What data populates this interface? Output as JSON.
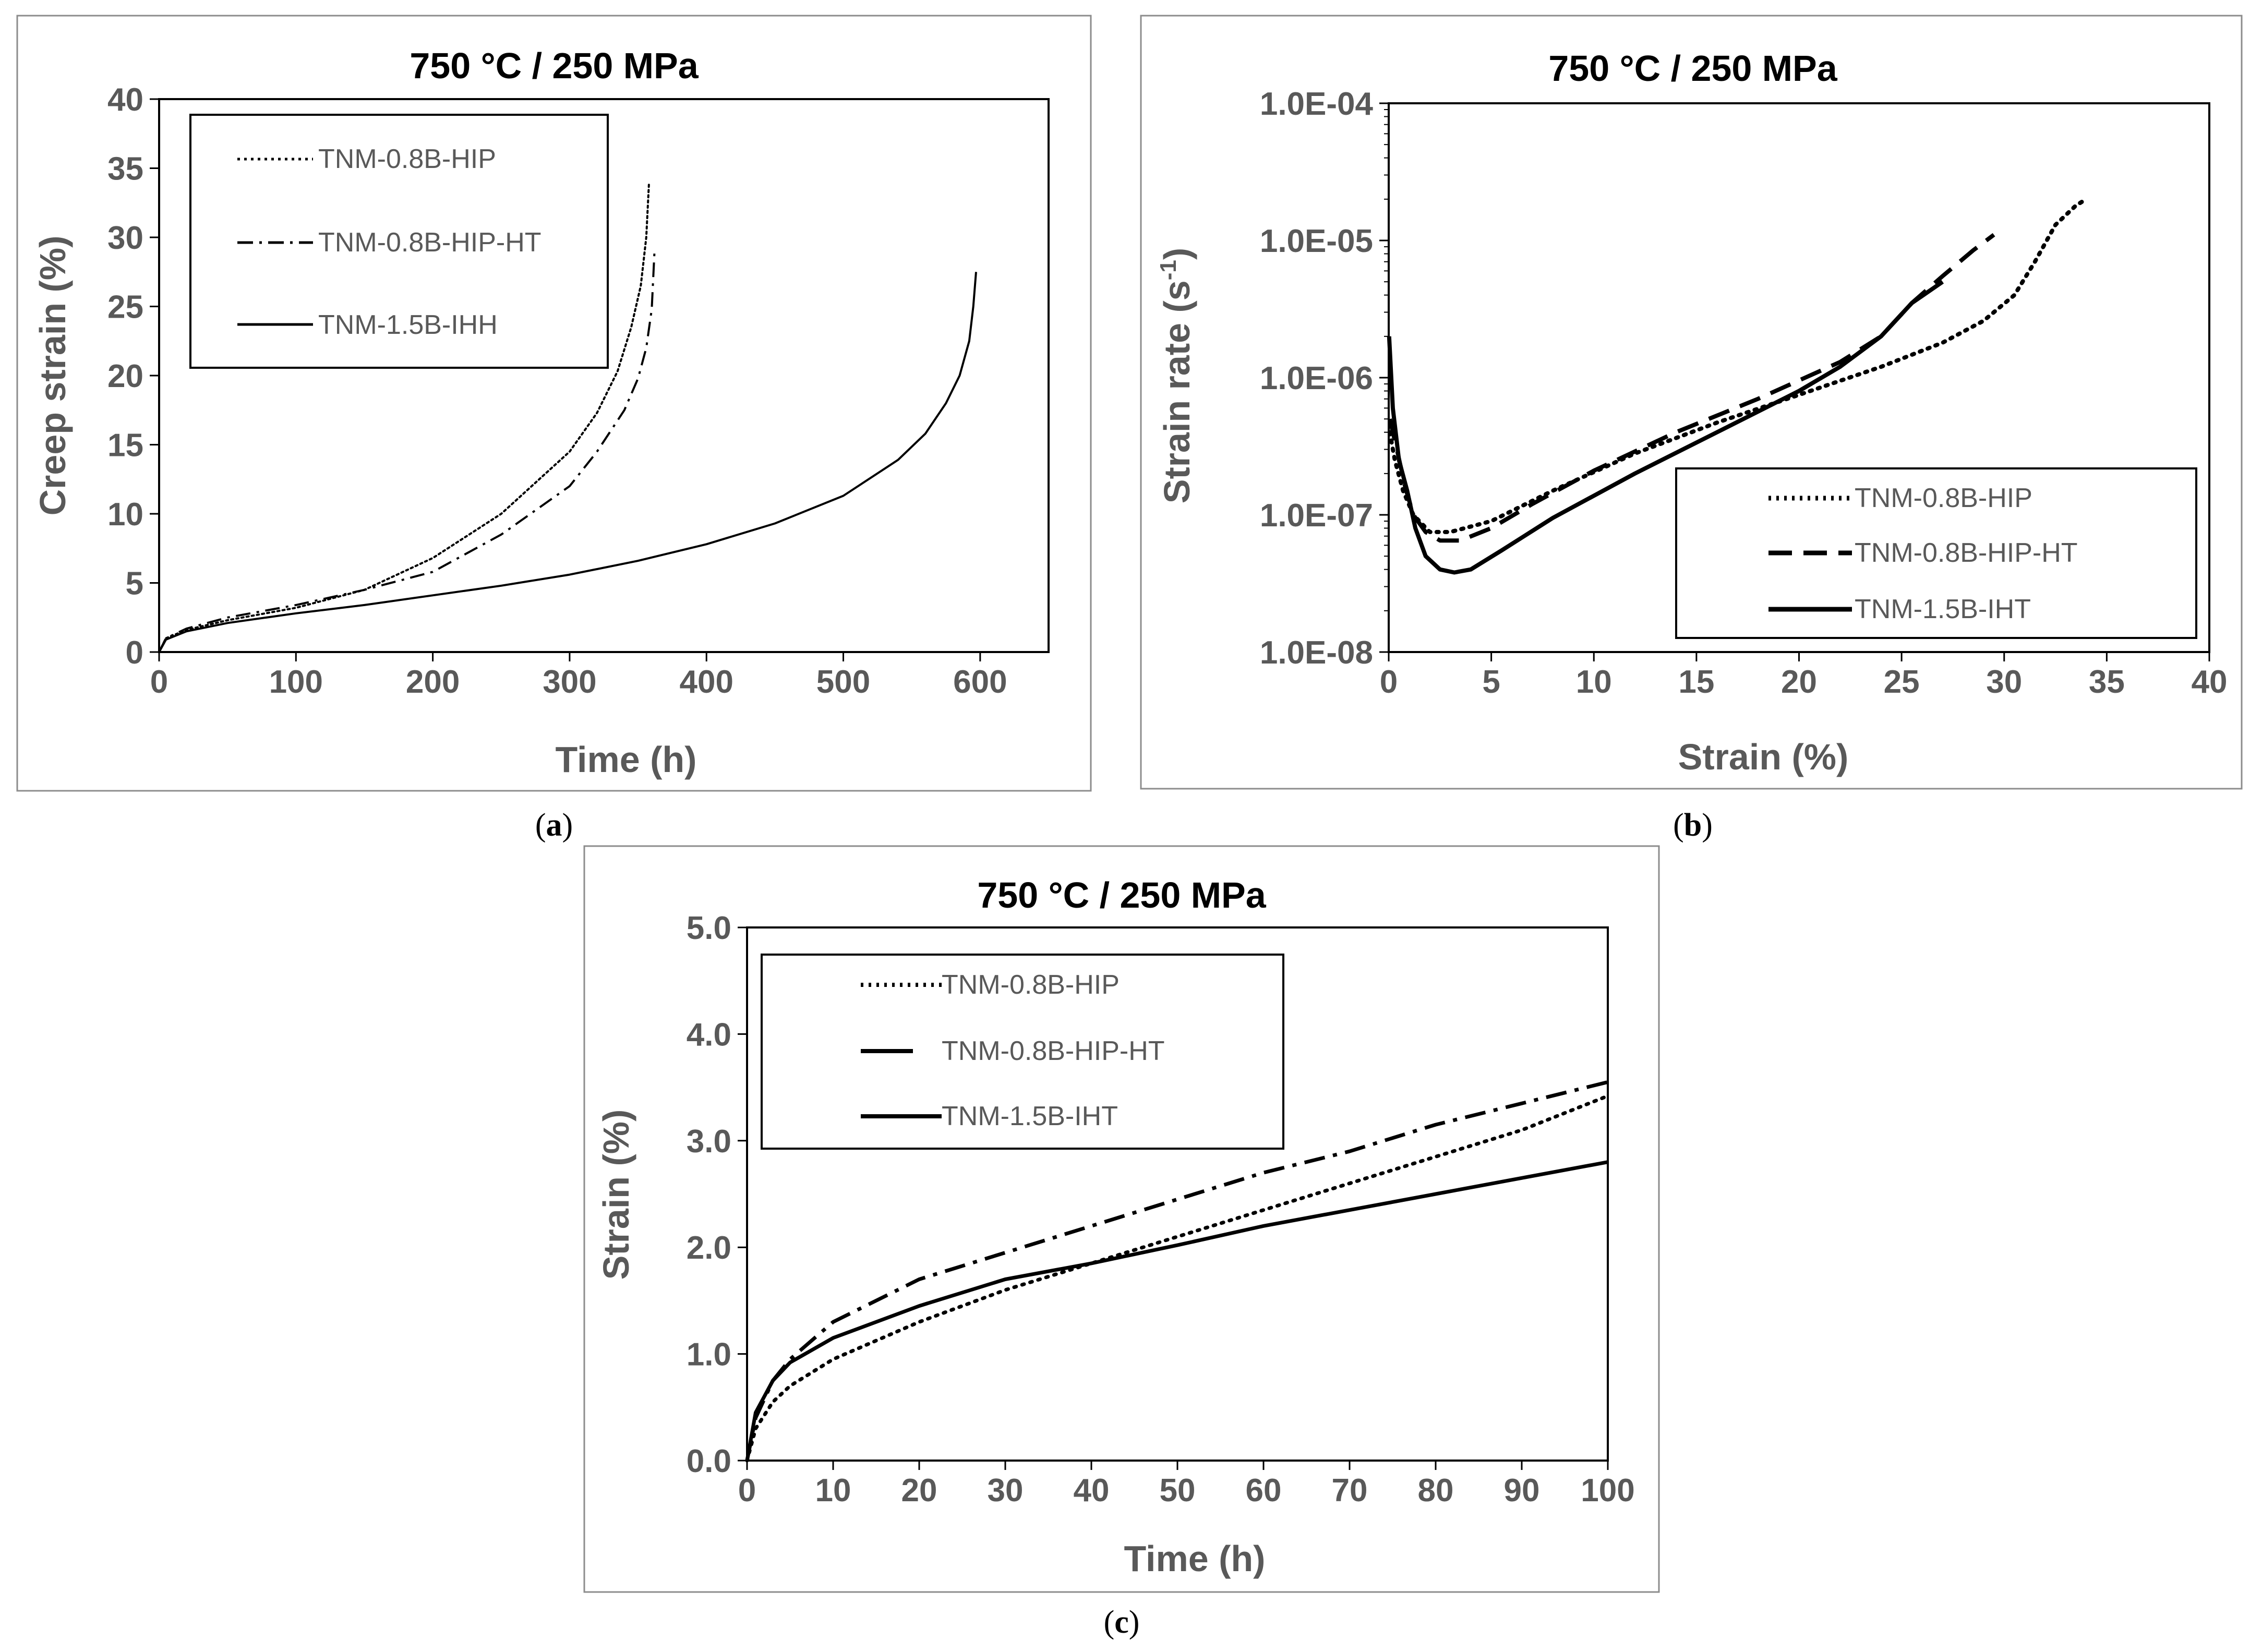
{
  "chart_data": [
    {
      "id": "a",
      "caption_letter": "a",
      "type": "line",
      "title": "750 °C / 250 MPa",
      "xlabel": "Time (h)",
      "ylabel": "Creep strain (%)",
      "xlim": [
        0,
        650
      ],
      "ylim": [
        0,
        40
      ],
      "x_scale": "linear",
      "y_scale": "linear",
      "xticks": [
        0,
        100,
        200,
        300,
        400,
        500,
        600
      ],
      "yticks": [
        0,
        5,
        10,
        15,
        20,
        25,
        30,
        35,
        40
      ],
      "xtick_labels": [
        "0",
        "100",
        "200",
        "300",
        "400",
        "500",
        "600"
      ],
      "ytick_labels": [
        "0",
        "5",
        "10",
        "15",
        "20",
        "25",
        "30",
        "35",
        "40"
      ],
      "legend_position": "top-left",
      "series": [
        {
          "name": "TNM-0.8B-HIP",
          "style": "dotted",
          "x": [
            0,
            5,
            20,
            50,
            100,
            150,
            200,
            250,
            300,
            320,
            335,
            345,
            352,
            356,
            358
          ],
          "y": [
            0,
            1.0,
            1.6,
            2.3,
            3.2,
            4.5,
            6.8,
            10.0,
            14.5,
            17.3,
            20.3,
            23.5,
            26.5,
            30.0,
            34.0
          ]
        },
        {
          "name": "TNM-0.8B-HIP-HT",
          "style": "dashdot",
          "x": [
            0,
            5,
            20,
            50,
            100,
            150,
            200,
            250,
            300,
            320,
            340,
            350,
            356,
            360,
            362
          ],
          "y": [
            0,
            1.0,
            1.7,
            2.5,
            3.4,
            4.5,
            5.8,
            8.5,
            12.0,
            14.5,
            17.5,
            19.8,
            22.0,
            24.8,
            29.0
          ]
        },
        {
          "name": "TNM-1.5B-IHH",
          "style": "solid",
          "x": [
            0,
            5,
            20,
            50,
            100,
            150,
            200,
            250,
            300,
            350,
            400,
            450,
            500,
            540,
            560,
            575,
            585,
            592,
            595,
            597
          ],
          "y": [
            0,
            0.9,
            1.5,
            2.1,
            2.8,
            3.4,
            4.1,
            4.8,
            5.6,
            6.6,
            7.8,
            9.3,
            11.3,
            13.9,
            15.8,
            18.0,
            20.0,
            22.5,
            25.0,
            27.5
          ]
        }
      ]
    },
    {
      "id": "b",
      "caption_letter": "b",
      "type": "line",
      "title": "750 °C / 250 MPa",
      "xlabel": "Strain (%)",
      "ylabel_main": "Strain rate (s",
      "ylabel_sup": "-1",
      "ylabel_end": ")",
      "xlim": [
        0,
        40
      ],
      "ylim": [
        1e-08,
        0.0001
      ],
      "x_scale": "linear",
      "y_scale": "log",
      "xticks": [
        0,
        5,
        10,
        15,
        20,
        25,
        30,
        35,
        40
      ],
      "yticks": [
        1e-08,
        1e-07,
        1e-06,
        1e-05,
        0.0001
      ],
      "xtick_labels": [
        "0",
        "5",
        "10",
        "15",
        "20",
        "25",
        "30",
        "35",
        "40"
      ],
      "ytick_labels": [
        "1.0E-08",
        "1.0E-07",
        "1.0E-06",
        "1.0E-05",
        "1.0E-04"
      ],
      "legend_position": "bottom-right",
      "series": [
        {
          "name": "TNM-0.8B-HIP",
          "style": "dotted",
          "x": [
            0.05,
            0.3,
            0.7,
            1.2,
            2.0,
            3.0,
            5.0,
            8.0,
            12.0,
            16.0,
            20.0,
            24.0,
            27.0,
            29.0,
            30.5,
            31.5,
            32.5,
            33.5,
            34.0
          ],
          "y": [
            4e-07,
            2.5e-07,
            1.5e-07,
            1e-07,
            7.5e-08,
            7.5e-08,
            9e-08,
            1.5e-07,
            2.8e-07,
            4.7e-07,
            7.5e-07,
            1.2e-06,
            1.8e-06,
            2.6e-06,
            4e-06,
            7e-06,
            1.3e-05,
            1.8e-05,
            2e-05
          ]
        },
        {
          "name": "TNM-0.8B-HIP-HT",
          "style": "dashed",
          "x": [
            0.05,
            0.4,
            0.8,
            1.2,
            1.8,
            2.5,
            3.5,
            5.0,
            7.0,
            10.0,
            14.0,
            18.0,
            22.0,
            24.0,
            25.5,
            27.0,
            28.5,
            29.5
          ],
          "y": [
            5e-07,
            3e-07,
            1.6e-07,
            1e-07,
            7.5e-08,
            6.5e-08,
            6.5e-08,
            8e-08,
            1.2e-07,
            2.1e-07,
            4e-07,
            7e-07,
            1.3e-06,
            2e-06,
            3.5e-06,
            5.5e-06,
            8.5e-06,
            1.1e-05
          ]
        },
        {
          "name": "TNM-1.5B-IHT",
          "style": "solid",
          "x": [
            0.02,
            0.2,
            0.5,
            0.9,
            1.3,
            1.8,
            2.5,
            3.2,
            4.0,
            5.5,
            8.0,
            12.0,
            16.0,
            20.0,
            22.0,
            24.0,
            25.5,
            27.0
          ],
          "y": [
            2e-06,
            6e-07,
            2.5e-07,
            1.5e-07,
            8e-08,
            5e-08,
            4e-08,
            3.8e-08,
            4e-08,
            5.5e-08,
            9.5e-08,
            2e-07,
            4e-07,
            8e-07,
            1.2e-06,
            2e-06,
            3.5e-06,
            5e-06
          ]
        }
      ]
    },
    {
      "id": "c",
      "caption_letter": "c",
      "type": "line",
      "title": "750 °C / 250 MPa",
      "xlabel": "Time (h)",
      "ylabel": "Strain (%)",
      "xlim": [
        0,
        100
      ],
      "ylim": [
        0,
        5
      ],
      "x_scale": "linear",
      "y_scale": "linear",
      "xticks": [
        0,
        10,
        20,
        30,
        40,
        50,
        60,
        70,
        80,
        90,
        100
      ],
      "yticks": [
        0,
        1,
        2,
        3,
        4,
        5
      ],
      "xtick_labels": [
        "0",
        "10",
        "20",
        "30",
        "40",
        "50",
        "60",
        "70",
        "80",
        "90",
        "100"
      ],
      "ytick_labels": [
        "0.0",
        "1.0",
        "2.0",
        "3.0",
        "4.0",
        "5.0"
      ],
      "legend_position": "top-left",
      "series": [
        {
          "name": "TNM-0.8B-HIP",
          "style": "dotted",
          "x": [
            0,
            1,
            3,
            5,
            10,
            20,
            30,
            40,
            50,
            60,
            70,
            80,
            90,
            100
          ],
          "y": [
            0,
            0.3,
            0.55,
            0.7,
            0.95,
            1.3,
            1.6,
            1.85,
            2.1,
            2.35,
            2.6,
            2.85,
            3.1,
            3.42
          ]
        },
        {
          "name": "TNM-0.8B-HIP-HT",
          "style": "dashdot",
          "x": [
            0,
            1,
            3,
            5,
            10,
            20,
            30,
            40,
            50,
            60,
            70,
            80,
            90,
            100
          ],
          "y": [
            0,
            0.4,
            0.75,
            0.95,
            1.3,
            1.7,
            1.95,
            2.2,
            2.45,
            2.7,
            2.9,
            3.15,
            3.35,
            3.55
          ]
        },
        {
          "name": "TNM-1.5B-IHT",
          "style": "solid",
          "x": [
            0,
            1,
            3,
            5,
            10,
            20,
            30,
            40,
            50,
            60,
            70,
            80,
            90,
            100
          ],
          "y": [
            0,
            0.45,
            0.75,
            0.92,
            1.15,
            1.45,
            1.7,
            1.85,
            2.02,
            2.2,
            2.35,
            2.5,
            2.65,
            2.8
          ]
        }
      ]
    }
  ]
}
